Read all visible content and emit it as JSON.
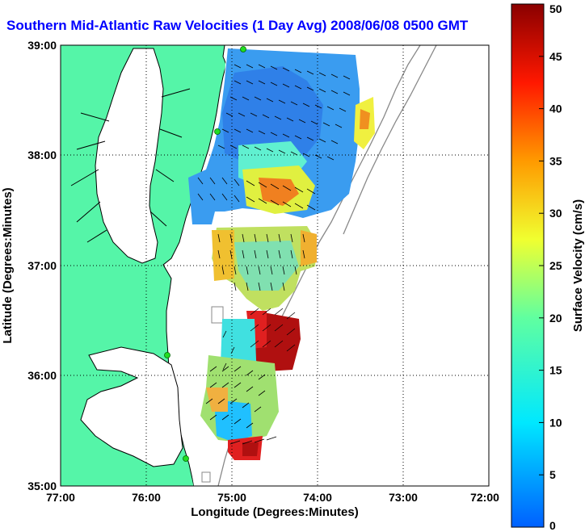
{
  "title": "Southern Mid-Atlantic Raw Velocities (1 Day Avg) 2008/06/08 0500 GMT",
  "map": {
    "x_axis_label": "Longitude (Degrees:Minutes)",
    "y_axis_label": "Latitude (Degrees:Minutes)",
    "x_ticks": [
      "77:00",
      "76:00",
      "75:00",
      "74:00",
      "73:00",
      "72:00"
    ],
    "y_ticks": [
      "39:00",
      "38:00",
      "37:00",
      "36:00",
      "35:00"
    ],
    "land_color": "#55f5a8",
    "station_color": "#22dd22"
  },
  "colorbar": {
    "label": "Surface Velocity (cm/s)",
    "min": 0,
    "max": 50,
    "ticks": [
      "0",
      "5",
      "10",
      "15",
      "20",
      "25",
      "30",
      "35",
      "40",
      "45",
      "50"
    ]
  }
}
